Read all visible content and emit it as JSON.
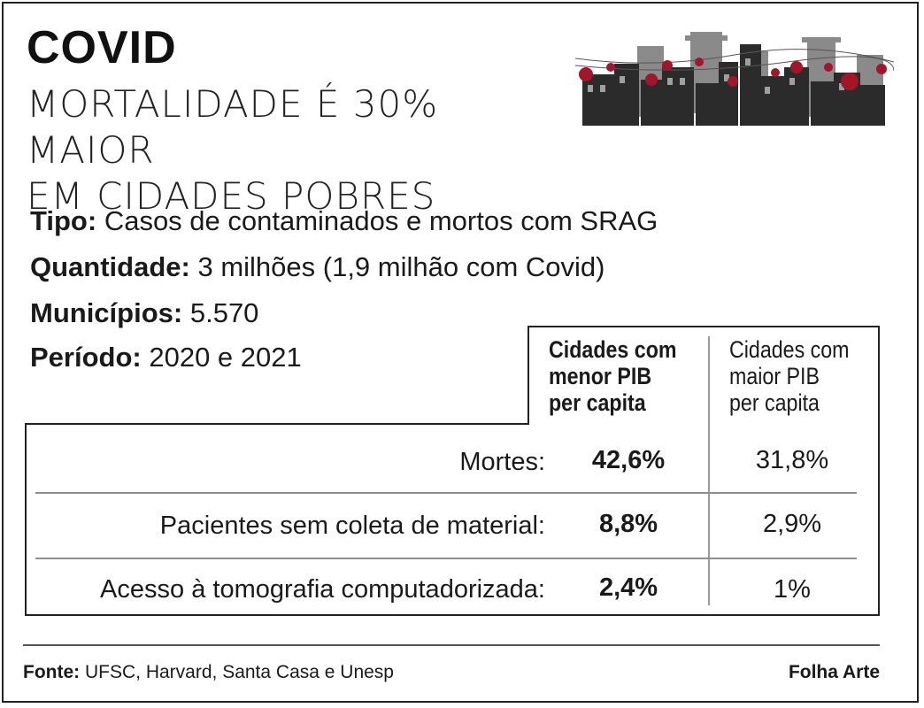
{
  "header": {
    "title": "COVID",
    "subtitle_line1": "MORTALIDADE É 30% MAIOR",
    "subtitle_line2": "EM CIDADES POBRES"
  },
  "illustration": {
    "icon": "city-skyline-with-virus-icon",
    "colors": {
      "buildings": "#2b2b2b",
      "buildings_back": "#8a8a8a",
      "virus": "#a3162a"
    }
  },
  "meta": [
    {
      "key": "Tipo:",
      "value": "Casos de contaminados e mortos com SRAG"
    },
    {
      "key": "Quantidade:",
      "value": "3 milhões (1,9 milhão com Covid)"
    },
    {
      "key": "Municípios:",
      "value": "5.570"
    },
    {
      "key": "Período:",
      "value": "2020 e 2021"
    }
  ],
  "table": {
    "columns": [
      {
        "lines": [
          "Cidades com",
          "menor PIB",
          "per capita"
        ]
      },
      {
        "lines": [
          "Cidades com",
          "maior PIB",
          "per capita"
        ]
      }
    ],
    "rows": [
      {
        "label": "Mortes:",
        "a": "42,6%",
        "b": "31,8%"
      },
      {
        "label": "Pacientes sem coleta de material:",
        "a": "8,8%",
        "b": "2,9%"
      },
      {
        "label": "Acesso à tomografia computadorizada:",
        "a": "2,4%",
        "b": "1%"
      }
    ]
  },
  "footer": {
    "source_key": "Fonte:",
    "source_value": "UFSC, Harvard, Santa Casa e Unesp",
    "credit": "Folha Arte"
  }
}
